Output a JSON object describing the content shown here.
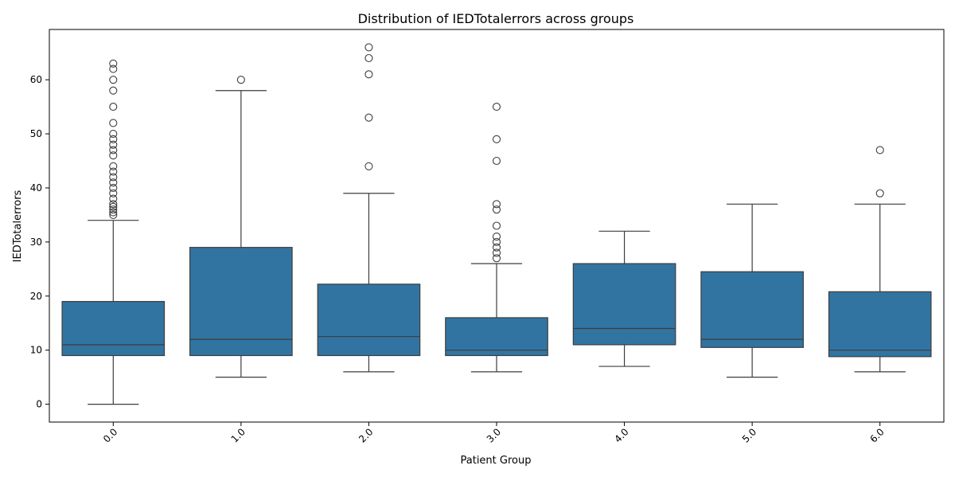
{
  "chart_data": {
    "type": "box",
    "title": "Distribution of IEDTotalerrors across groups",
    "xlabel": "Patient Group",
    "ylabel": "IEDTotalerrors",
    "ylim": [
      -3.3,
      69.3
    ],
    "yticks": [
      0,
      10,
      20,
      30,
      40,
      50,
      60
    ],
    "grid": false,
    "colors": {
      "box_fill": "#3274a1",
      "line": "#3d3d3d"
    },
    "categories": [
      "0.0",
      "1.0",
      "2.0",
      "3.0",
      "4.0",
      "5.0",
      "6.0"
    ],
    "boxes": [
      {
        "group": "0.0",
        "whisker_low": 0,
        "q1": 9,
        "median": 11,
        "q3": 19,
        "whisker_high": 34,
        "outliers": [
          35,
          35.5,
          36,
          36.5,
          37,
          38,
          39,
          40,
          41,
          42,
          43,
          44,
          46,
          47,
          48,
          49,
          50,
          52,
          55,
          58,
          60,
          62,
          63
        ]
      },
      {
        "group": "1.0",
        "whisker_low": 5,
        "q1": 9,
        "median": 12,
        "q3": 29,
        "whisker_high": 58,
        "outliers": [
          60
        ]
      },
      {
        "group": "2.0",
        "whisker_low": 6,
        "q1": 9,
        "median": 12.5,
        "q3": 22.2,
        "whisker_high": 39,
        "outliers": [
          44,
          53,
          61,
          64,
          66
        ]
      },
      {
        "group": "3.0",
        "whisker_low": 6,
        "q1": 9,
        "median": 10,
        "q3": 16,
        "whisker_high": 26,
        "outliers": [
          27,
          28,
          29,
          30,
          31,
          33,
          36,
          37,
          45,
          49,
          55
        ]
      },
      {
        "group": "4.0",
        "whisker_low": 7,
        "q1": 11,
        "median": 14,
        "q3": 26,
        "whisker_high": 32,
        "outliers": []
      },
      {
        "group": "5.0",
        "whisker_low": 5,
        "q1": 10.5,
        "median": 12,
        "q3": 24.5,
        "whisker_high": 37,
        "outliers": []
      },
      {
        "group": "6.0",
        "whisker_low": 6,
        "q1": 8.8,
        "median": 10,
        "q3": 20.8,
        "whisker_high": 37,
        "outliers": [
          39,
          47
        ]
      }
    ]
  }
}
